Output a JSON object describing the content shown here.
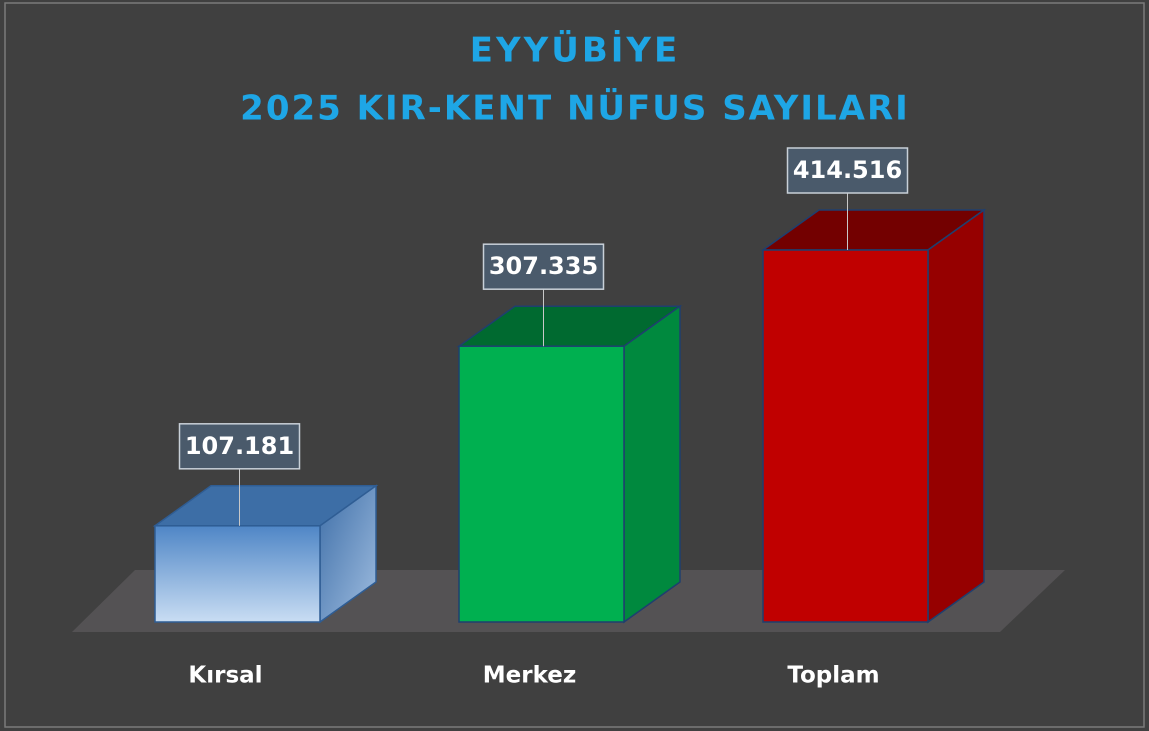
{
  "chart_data": {
    "type": "bar3d",
    "title": "EYYÜBİYE",
    "subtitle": "2025 KIR-KENT NÜFUS SAYILARI",
    "categories": [
      "Kırsal",
      "Merkez",
      "Toplam"
    ],
    "values": [
      107181,
      307335,
      414516
    ],
    "value_labels": [
      "107.181",
      "307.335",
      "414.516"
    ],
    "colors": [
      "#7fa9d9",
      "#00b050",
      "#c00000"
    ]
  }
}
